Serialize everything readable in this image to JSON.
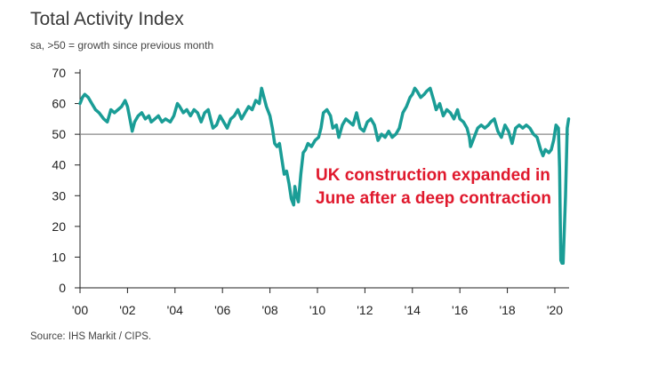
{
  "header": {
    "title": "Total Activity Index",
    "subtitle": "sa, >50 = growth since previous month"
  },
  "annotation": {
    "line1": "UK construction expanded in",
    "line2": "June after a deep contraction"
  },
  "source": "Source: IHS Markit / CIPS.",
  "colors": {
    "line": "#1a9d96",
    "reference": "#888888",
    "annotation": "#e0192d",
    "axis": "#222222"
  },
  "chart_data": {
    "type": "line",
    "title": "Total Activity Index",
    "subtitle": "sa, >50 = growth since previous month",
    "xlabel": "",
    "ylabel": "",
    "xlim": [
      2000.0,
      2020.6
    ],
    "ylim": [
      0,
      70
    ],
    "yticks": [
      0,
      10,
      20,
      30,
      40,
      50,
      60,
      70
    ],
    "xtick_labels": [
      "'00",
      "'02",
      "'04",
      "'06",
      "'08",
      "'10",
      "'12",
      "'14",
      "'16",
      "'18",
      "'20"
    ],
    "xtick_values": [
      2000,
      2002,
      2004,
      2006,
      2008,
      2010,
      2012,
      2014,
      2016,
      2018,
      2020
    ],
    "reference_line": 50,
    "grid": false,
    "series": [
      {
        "points": [
          [
            2000.0,
            60
          ],
          [
            2000.1,
            62
          ],
          [
            2000.2,
            63
          ],
          [
            2000.35,
            62
          ],
          [
            2000.5,
            60
          ],
          [
            2000.65,
            58
          ],
          [
            2000.8,
            57
          ],
          [
            2001.0,
            55
          ],
          [
            2001.15,
            54
          ],
          [
            2001.3,
            58
          ],
          [
            2001.45,
            57
          ],
          [
            2001.6,
            58
          ],
          [
            2001.75,
            59
          ],
          [
            2001.9,
            61
          ],
          [
            2002.0,
            59
          ],
          [
            2002.1,
            55
          ],
          [
            2002.2,
            51
          ],
          [
            2002.3,
            54
          ],
          [
            2002.45,
            56
          ],
          [
            2002.6,
            57
          ],
          [
            2002.75,
            55
          ],
          [
            2002.9,
            56
          ],
          [
            2003.0,
            54
          ],
          [
            2003.15,
            55
          ],
          [
            2003.3,
            56
          ],
          [
            2003.45,
            54
          ],
          [
            2003.6,
            55
          ],
          [
            2003.8,
            54
          ],
          [
            2003.95,
            56
          ],
          [
            2004.1,
            60
          ],
          [
            2004.2,
            59
          ],
          [
            2004.35,
            57
          ],
          [
            2004.5,
            58
          ],
          [
            2004.65,
            56
          ],
          [
            2004.8,
            58
          ],
          [
            2004.95,
            57
          ],
          [
            2005.1,
            54
          ],
          [
            2005.25,
            57
          ],
          [
            2005.4,
            58
          ],
          [
            2005.5,
            55
          ],
          [
            2005.6,
            52
          ],
          [
            2005.75,
            53
          ],
          [
            2005.9,
            56
          ],
          [
            2006.05,
            54
          ],
          [
            2006.2,
            52
          ],
          [
            2006.35,
            55
          ],
          [
            2006.5,
            56
          ],
          [
            2006.65,
            58
          ],
          [
            2006.8,
            55
          ],
          [
            2006.95,
            57
          ],
          [
            2007.1,
            59
          ],
          [
            2007.25,
            58
          ],
          [
            2007.4,
            61
          ],
          [
            2007.55,
            60
          ],
          [
            2007.65,
            65
          ],
          [
            2007.75,
            62
          ],
          [
            2007.85,
            59
          ],
          [
            2008.0,
            56
          ],
          [
            2008.1,
            52
          ],
          [
            2008.2,
            47
          ],
          [
            2008.3,
            46
          ],
          [
            2008.4,
            47
          ],
          [
            2008.5,
            42
          ],
          [
            2008.6,
            37
          ],
          [
            2008.7,
            38
          ],
          [
            2008.8,
            34
          ],
          [
            2008.9,
            29
          ],
          [
            2009.0,
            27
          ],
          [
            2009.05,
            33
          ],
          [
            2009.12,
            30
          ],
          [
            2009.2,
            28
          ],
          [
            2009.3,
            37
          ],
          [
            2009.4,
            44
          ],
          [
            2009.5,
            45
          ],
          [
            2009.6,
            47
          ],
          [
            2009.75,
            46
          ],
          [
            2009.9,
            48
          ],
          [
            2010.05,
            49
          ],
          [
            2010.15,
            52
          ],
          [
            2010.25,
            57
          ],
          [
            2010.4,
            58
          ],
          [
            2010.55,
            56
          ],
          [
            2010.65,
            52
          ],
          [
            2010.8,
            53
          ],
          [
            2010.9,
            49
          ],
          [
            2011.05,
            53
          ],
          [
            2011.2,
            55
          ],
          [
            2011.35,
            54
          ],
          [
            2011.5,
            53
          ],
          [
            2011.65,
            57
          ],
          [
            2011.8,
            52
          ],
          [
            2011.95,
            51
          ],
          [
            2012.1,
            54
          ],
          [
            2012.25,
            55
          ],
          [
            2012.4,
            53
          ],
          [
            2012.55,
            48
          ],
          [
            2012.7,
            50
          ],
          [
            2012.85,
            49
          ],
          [
            2013.0,
            51
          ],
          [
            2013.15,
            49
          ],
          [
            2013.3,
            50
          ],
          [
            2013.45,
            52
          ],
          [
            2013.6,
            57
          ],
          [
            2013.75,
            59
          ],
          [
            2013.9,
            62
          ],
          [
            2014.0,
            63
          ],
          [
            2014.1,
            65
          ],
          [
            2014.2,
            64
          ],
          [
            2014.35,
            62
          ],
          [
            2014.5,
            63
          ],
          [
            2014.6,
            64
          ],
          [
            2014.75,
            65
          ],
          [
            2014.9,
            61
          ],
          [
            2015.0,
            58
          ],
          [
            2015.15,
            60
          ],
          [
            2015.3,
            56
          ],
          [
            2015.45,
            58
          ],
          [
            2015.6,
            57
          ],
          [
            2015.75,
            55
          ],
          [
            2015.9,
            58
          ],
          [
            2016.0,
            55
          ],
          [
            2016.15,
            54
          ],
          [
            2016.3,
            52
          ],
          [
            2016.4,
            49
          ],
          [
            2016.45,
            46
          ],
          [
            2016.6,
            49
          ],
          [
            2016.75,
            52
          ],
          [
            2016.9,
            53
          ],
          [
            2017.05,
            52
          ],
          [
            2017.2,
            53
          ],
          [
            2017.3,
            54
          ],
          [
            2017.45,
            55
          ],
          [
            2017.6,
            51
          ],
          [
            2017.75,
            49
          ],
          [
            2017.9,
            53
          ],
          [
            2018.05,
            51
          ],
          [
            2018.2,
            47
          ],
          [
            2018.35,
            52
          ],
          [
            2018.5,
            53
          ],
          [
            2018.65,
            52
          ],
          [
            2018.8,
            53
          ],
          [
            2018.95,
            52
          ],
          [
            2019.1,
            50
          ],
          [
            2019.25,
            49
          ],
          [
            2019.4,
            45
          ],
          [
            2019.5,
            43
          ],
          [
            2019.6,
            45
          ],
          [
            2019.75,
            44
          ],
          [
            2019.85,
            45
          ],
          [
            2019.95,
            48
          ],
          [
            2020.05,
            53
          ],
          [
            2020.15,
            52
          ],
          [
            2020.2,
            39
          ],
          [
            2020.25,
            9
          ],
          [
            2020.3,
            8
          ],
          [
            2020.35,
            8
          ],
          [
            2020.45,
            30
          ],
          [
            2020.52,
            52
          ],
          [
            2020.58,
            55
          ]
        ]
      }
    ]
  }
}
